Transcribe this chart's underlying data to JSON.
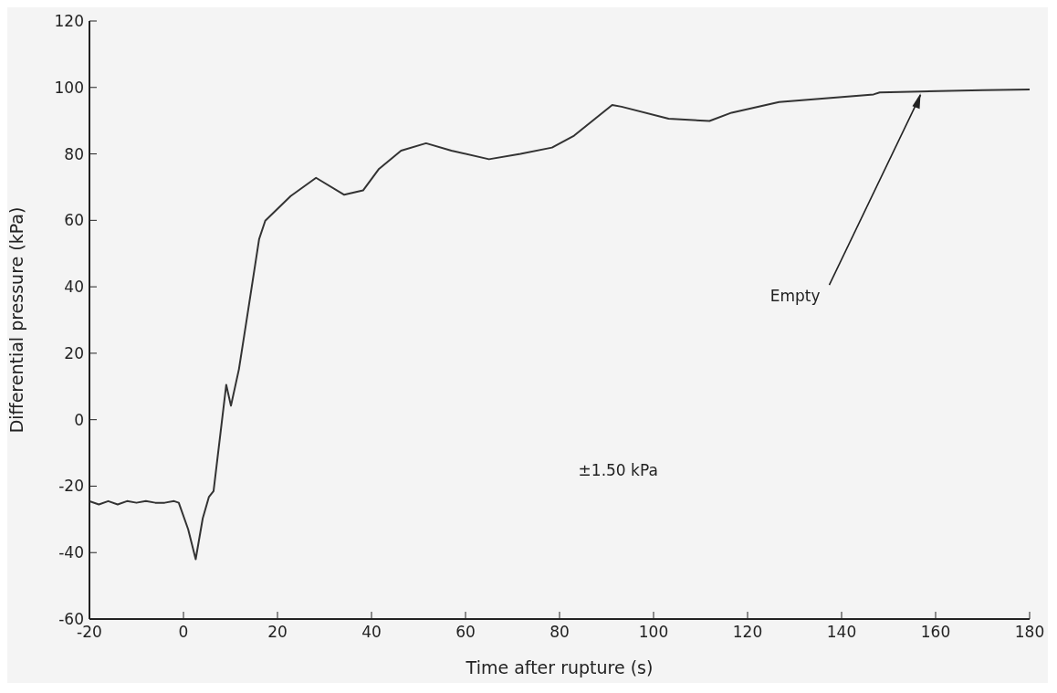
{
  "chart_data": {
    "type": "line",
    "xlabel": "Time after rupture (s)",
    "ylabel": "Differential pressure (kPa)",
    "x": [
      -20,
      -18,
      -16,
      -14,
      -12,
      -10,
      -8,
      -6,
      -4,
      -2,
      -1,
      1,
      2.6,
      4.1,
      5.4,
      6.4,
      9.1,
      10.1,
      11.8,
      13.4,
      16.1,
      17.4,
      22.8,
      28.2,
      34.2,
      38.2,
      41.6,
      46.3,
      51.6,
      57,
      65,
      71.7,
      78.4,
      83.1,
      91.2,
      93.2,
      103.2,
      111.9,
      116.6,
      126.7,
      146.8,
      148.1,
      156.8,
      170,
      180
    ],
    "series": [
      {
        "color": "#333333",
        "values": [
          -24.5,
          -25.5,
          -24.5,
          -25.5,
          -24.5,
          -25,
          -24.5,
          -25,
          -25,
          -24.5,
          -25,
          -33,
          -42,
          -29.7,
          -23.3,
          -21.5,
          10.5,
          4.2,
          15.2,
          29.7,
          54.4,
          59.9,
          67.3,
          72.8,
          67.7,
          69,
          75.5,
          81,
          83.2,
          81,
          78.4,
          80,
          81.9,
          85.5,
          94.7,
          94.2,
          90.6,
          89.9,
          92.4,
          95.6,
          97.9,
          98.5,
          98.8,
          99.2,
          99.4
        ]
      }
    ],
    "xlim": [
      -20,
      180
    ],
    "xticks": [
      -20,
      0,
      20,
      40,
      60,
      80,
      100,
      120,
      140,
      160,
      180
    ],
    "ylim": [
      -60,
      120
    ],
    "yticks": [
      -60,
      -40,
      -20,
      0,
      20,
      40,
      60,
      80,
      100,
      120
    ],
    "annotations": [
      {
        "text": "Empty",
        "x": 156.8,
        "y": 98.8
      },
      "±1.50 kPa"
    ]
  }
}
